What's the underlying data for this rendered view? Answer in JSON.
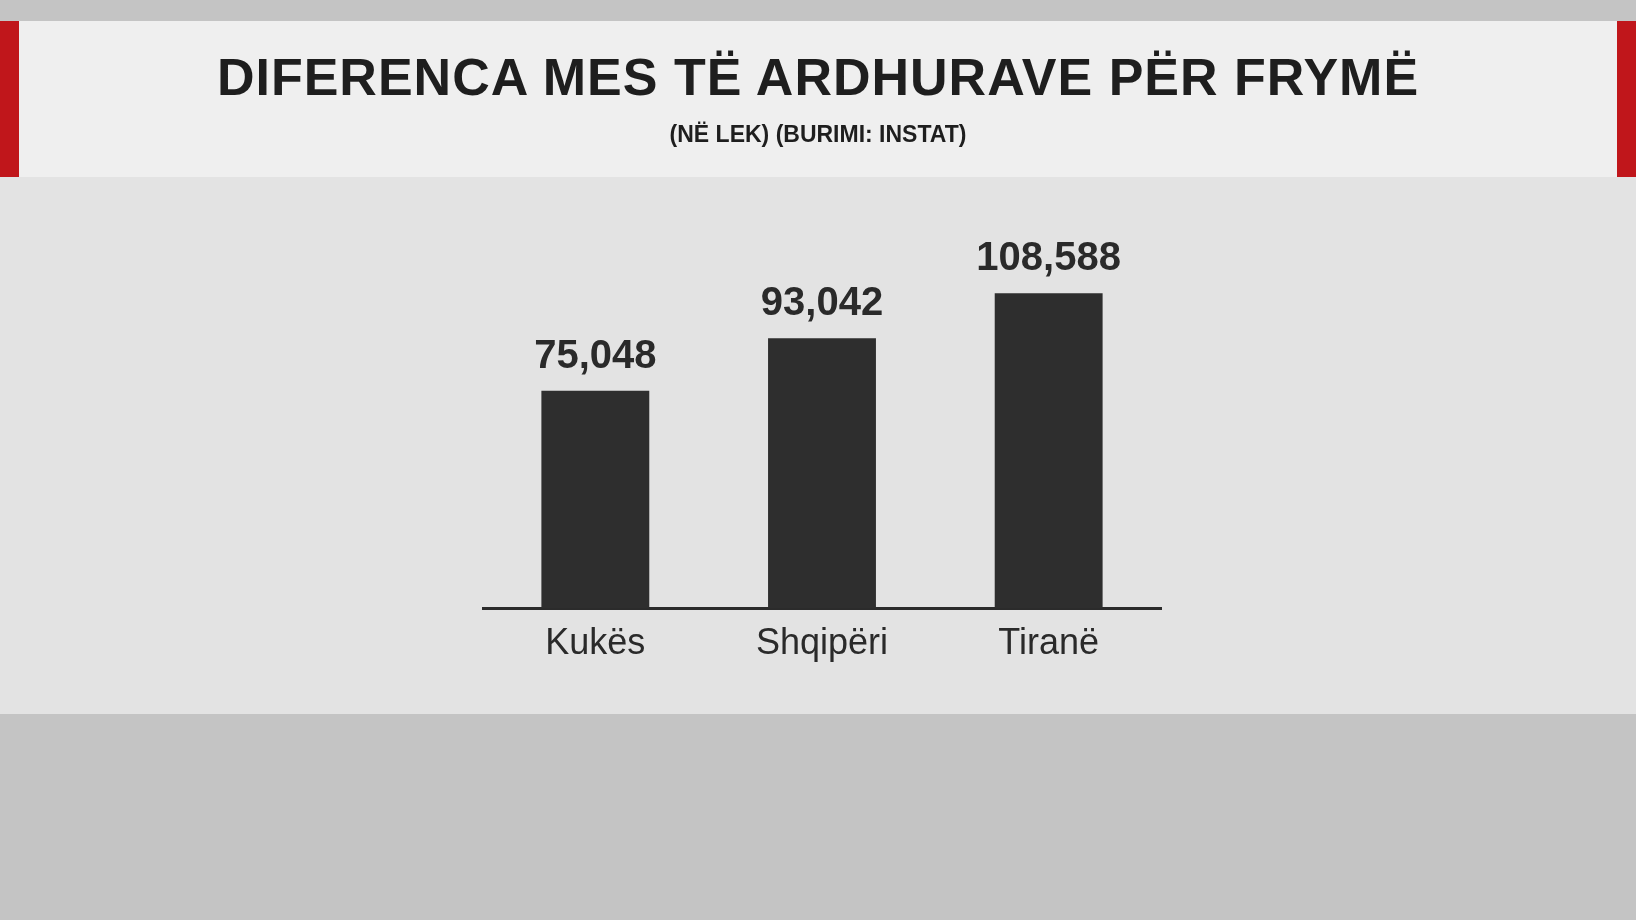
{
  "chart_data": {
    "type": "bar",
    "title": "DIFERENCA MES TË ARDHURAVE PËR FRYMË",
    "subtitle": "(NË LEK) (BURIMI: INSTAT)",
    "categories": [
      "Kukës",
      "Shqipëri",
      "Tiranë"
    ],
    "values": [
      75048,
      93042,
      108588
    ],
    "color": "#2e2e2e",
    "value_labels": [
      "75,048",
      "93,042",
      "108,588"
    ],
    "legend": false
  }
}
